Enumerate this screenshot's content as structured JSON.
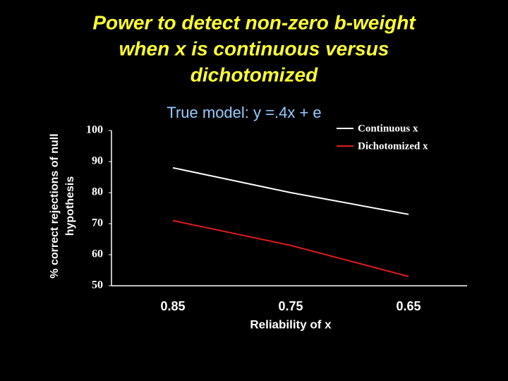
{
  "chart_data": {
    "type": "line",
    "title": [
      "Power to detect non-zero b-weight",
      "when x is continuous versus",
      "dichotomized"
    ],
    "subtitle": "True model: y =.4x + e",
    "ylabel": [
      "% correct rejections of null",
      "hypothesis"
    ],
    "xlabel": "Reliability of x",
    "categories": [
      "0.85",
      "0.75",
      "0.65"
    ],
    "series": [
      {
        "name": "Continuous x",
        "color": "#ffffff",
        "values": [
          88,
          80,
          73
        ]
      },
      {
        "name": "Dichotomized x",
        "color": "#e31a1c",
        "values": [
          71,
          63,
          53
        ]
      }
    ],
    "ylim": [
      50,
      100
    ],
    "yticks": [
      50,
      60,
      70,
      80,
      90,
      100
    ],
    "grid": false,
    "legend": "top-right"
  }
}
